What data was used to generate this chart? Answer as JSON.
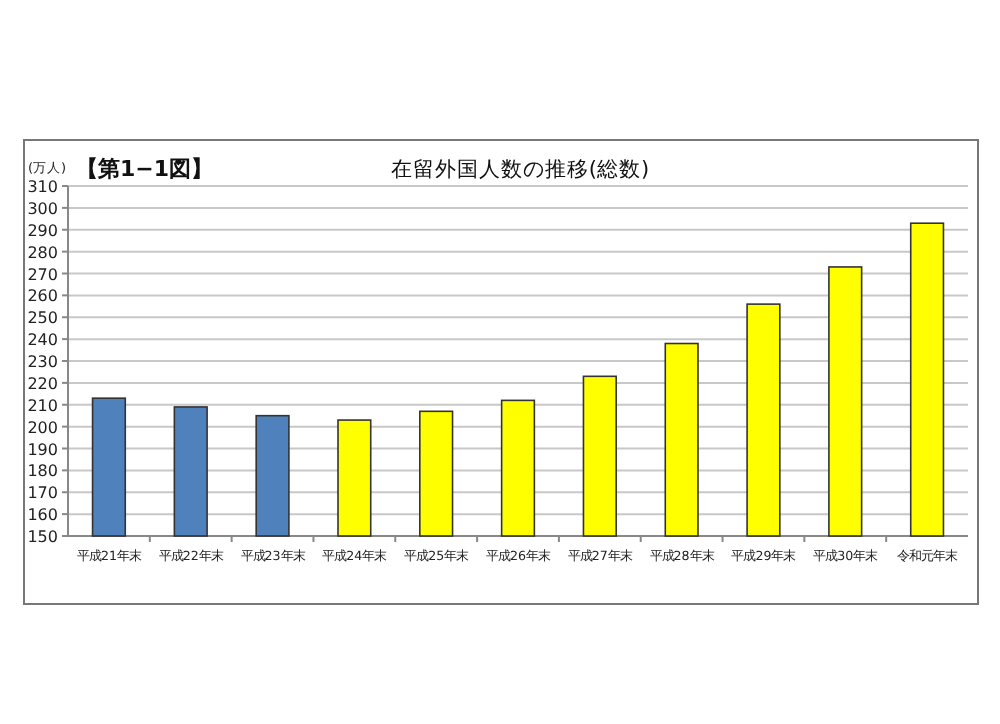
{
  "chart_data": {
    "type": "bar",
    "title": "在留外国人数の推移(総数)",
    "subtitle": "【第1−1図】",
    "ylabel": "(万人)",
    "categories": [
      "平成21年末",
      "平成22年末",
      "平成23年末",
      "平成24年末",
      "平成25年末",
      "平成26年末",
      "平成27年末",
      "平成28年末",
      "平成29年末",
      "平成30年末",
      "令和元年末"
    ],
    "values": [
      213,
      209,
      205,
      203,
      207,
      212,
      223,
      238,
      256,
      273,
      293
    ],
    "colors": [
      "#4f81bd",
      "#4f81bd",
      "#4f81bd",
      "#ffff00",
      "#ffff00",
      "#ffff00",
      "#ffff00",
      "#ffff00",
      "#ffff00",
      "#ffff00",
      "#ffff00"
    ],
    "ylim": [
      150,
      310
    ],
    "yticks": [
      150,
      160,
      170,
      180,
      190,
      200,
      210,
      220,
      230,
      240,
      250,
      260,
      270,
      280,
      290,
      300,
      310
    ],
    "grid": "y"
  }
}
